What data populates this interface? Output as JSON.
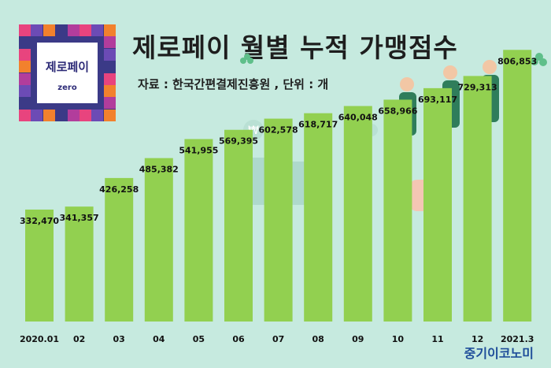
{
  "logo": {
    "text": "제로페이",
    "sub": "zero"
  },
  "header": {
    "title": "제로페이 월별 누적 가맹점수",
    "subtitle": "자료 : 한국간편결제진흥원 , 단위 : 개"
  },
  "brand": "중기이코노미",
  "colors": {
    "background": "#c6eadf",
    "bar": "#92d050",
    "label": "#111111",
    "logo_bg": "#3b3a87"
  },
  "chart_data": {
    "type": "bar",
    "title": "제로페이 월별 누적 가맹점수",
    "categories": [
      "2020.01",
      "02",
      "03",
      "04",
      "05",
      "06",
      "07",
      "08",
      "09",
      "10",
      "11",
      "12",
      "2021.3"
    ],
    "values": [
      332470,
      341357,
      426258,
      485382,
      541955,
      569395,
      602578,
      618717,
      640048,
      658966,
      693117,
      729313,
      806853
    ],
    "value_labels": [
      "332,470",
      "341,357",
      "426,258",
      "485,382",
      "541,955",
      "569,395",
      "602,578",
      "618,717",
      "640,048",
      "658,966",
      "693,117",
      "729,313",
      "806,853"
    ],
    "xlabel": "",
    "ylabel": "",
    "grid": false,
    "legend": "none"
  }
}
